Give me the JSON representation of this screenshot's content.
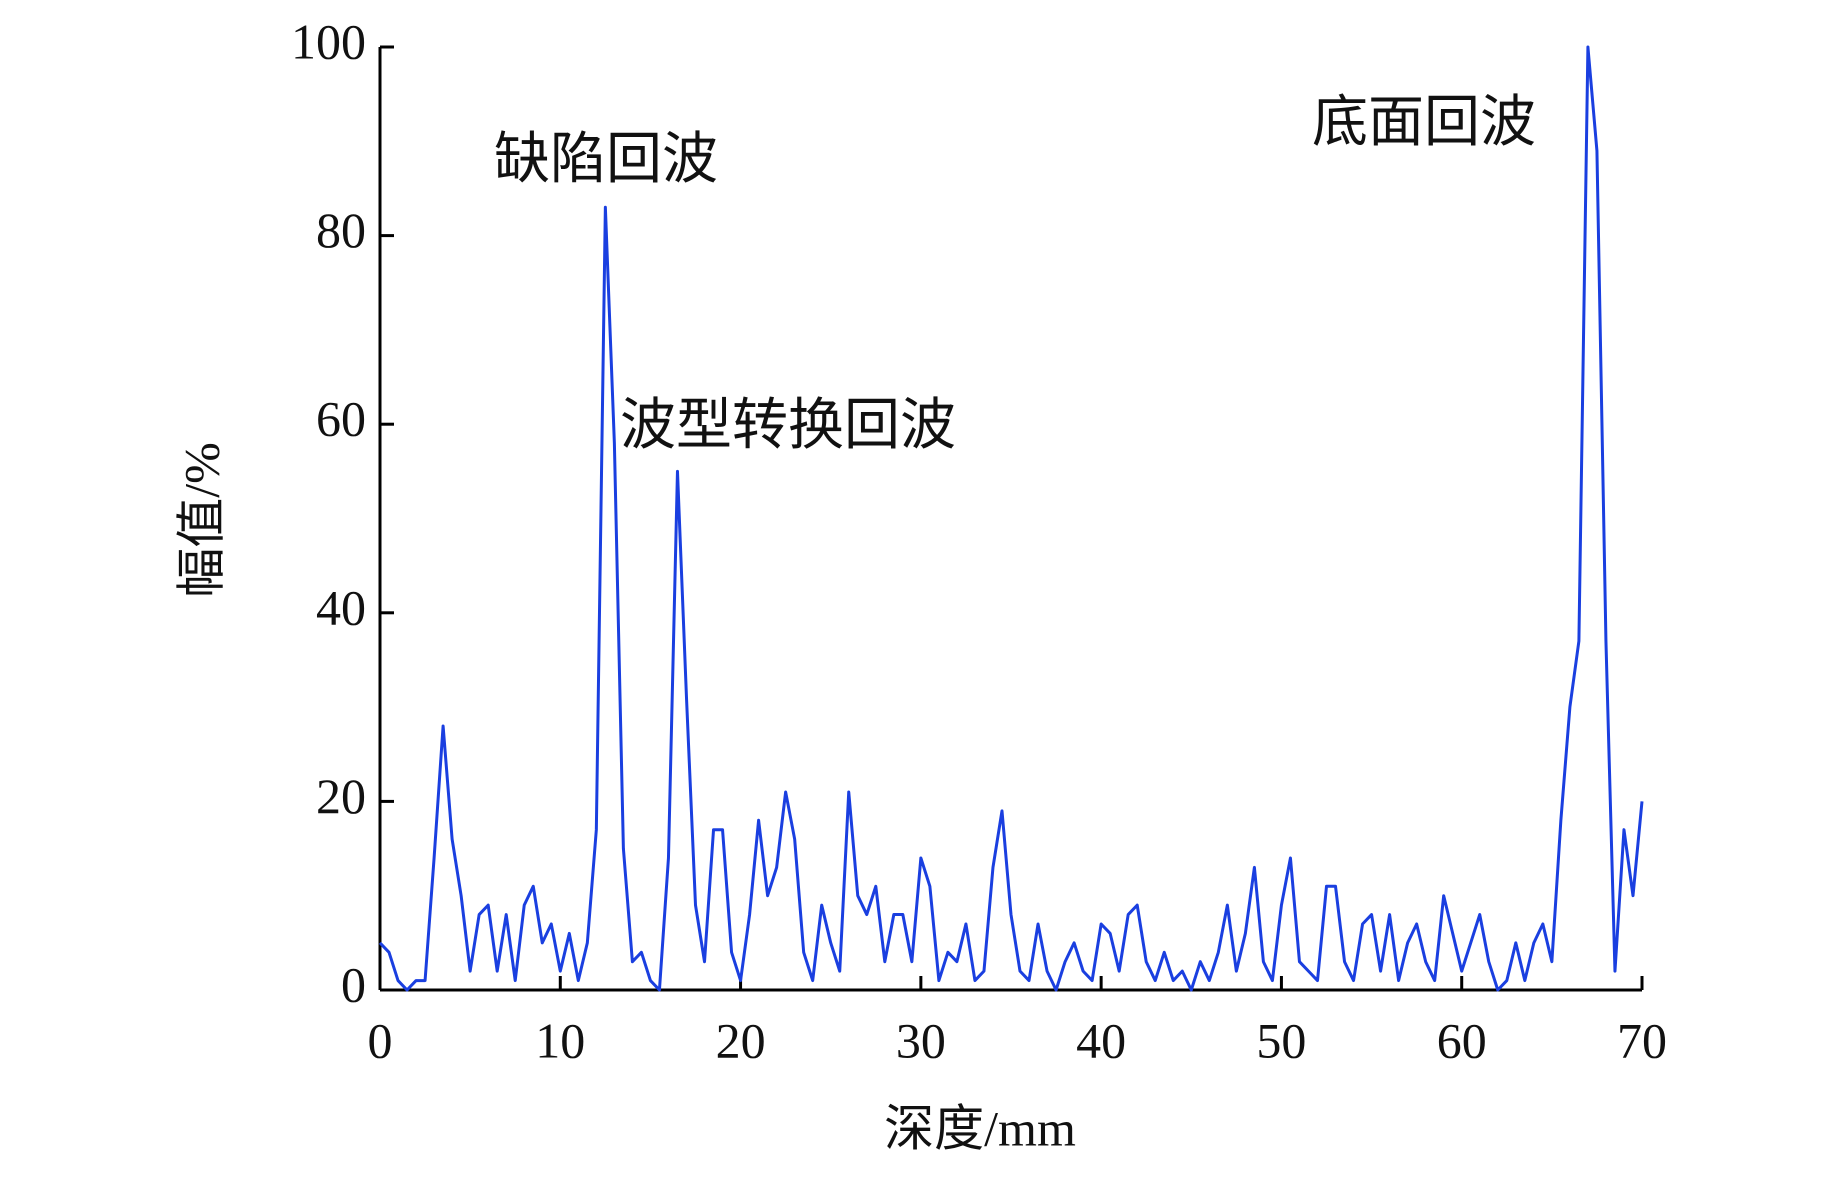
{
  "chart_data": {
    "type": "line",
    "x_label": "深度/mm",
    "y_label": "幅值/%",
    "annotations": [
      "缺陷回波",
      "波型转换回波",
      "底面回波"
    ],
    "x": [
      0,
      0.5,
      1,
      1.5,
      2,
      2.5,
      3,
      3.5,
      4,
      4.5,
      5,
      5.5,
      6,
      6.5,
      7,
      7.5,
      8,
      8.5,
      9,
      9.5,
      10,
      10.5,
      11,
      11.5,
      12,
      12.5,
      13,
      13.5,
      14,
      14.5,
      15,
      15.5,
      16,
      16.5,
      17,
      17.5,
      18,
      18.5,
      19,
      19.5,
      20,
      20.5,
      21,
      21.5,
      22,
      22.5,
      23,
      23.5,
      24,
      24.5,
      25,
      25.5,
      26,
      26.5,
      27,
      27.5,
      28,
      28.5,
      29,
      29.5,
      30,
      30.5,
      31,
      31.5,
      32,
      32.5,
      33,
      33.5,
      34,
      34.5,
      35,
      35.5,
      36,
      36.5,
      37,
      37.5,
      38,
      38.5,
      39,
      39.5,
      40,
      40.5,
      41,
      41.5,
      42,
      42.5,
      43,
      43.5,
      44,
      44.5,
      45,
      45.5,
      46,
      46.5,
      47,
      47.5,
      48,
      48.5,
      49,
      49.5,
      50,
      50.5,
      51,
      51.5,
      52,
      52.5,
      53,
      53.5,
      54,
      54.5,
      55,
      55.5,
      56,
      56.5,
      57,
      57.5,
      58,
      58.5,
      59,
      59.5,
      60,
      60.5,
      61,
      61.5,
      62,
      62.5,
      63,
      63.5,
      64,
      64.5,
      65,
      65.5,
      66,
      66.5,
      67,
      67.5,
      68,
      68.5,
      69,
      69.5,
      70
    ],
    "series": [
      {
        "color": "#1a3fe0",
        "values": [
          5,
          4,
          1,
          0,
          1,
          1,
          14,
          28,
          16,
          10,
          2,
          8,
          9,
          2,
          8,
          1,
          9,
          11,
          5,
          7,
          2,
          6,
          1,
          5,
          17,
          83,
          58,
          15,
          3,
          4,
          1,
          0,
          14,
          55,
          31,
          9,
          3,
          17,
          17,
          4,
          1,
          8,
          18,
          10,
          13,
          21,
          16,
          4,
          1,
          9,
          5,
          2,
          21,
          10,
          8,
          11,
          3,
          8,
          8,
          3,
          14,
          11,
          1,
          4,
          3,
          7,
          1,
          2,
          13,
          19,
          8,
          2,
          1,
          7,
          2,
          0,
          3,
          5,
          2,
          1,
          7,
          6,
          2,
          8,
          9,
          3,
          1,
          4,
          1,
          2,
          0,
          3,
          1,
          4,
          9,
          2,
          6,
          13,
          3,
          1,
          9,
          14,
          3,
          2,
          1,
          11,
          11,
          3,
          1,
          7,
          8,
          2,
          8,
          1,
          5,
          7,
          3,
          1,
          10,
          6,
          2,
          5,
          8,
          3,
          0,
          1,
          5,
          1,
          5,
          7,
          3,
          18,
          30,
          37,
          100,
          89,
          37,
          2,
          17,
          10,
          20
        ]
      }
    ],
    "xlim": [
      0,
      70
    ],
    "xticks": [
      0,
      10,
      20,
      30,
      40,
      50,
      60,
      70
    ],
    "ylim": [
      0,
      100
    ],
    "yticks": [
      0,
      20,
      40,
      60,
      80,
      100
    ],
    "grid": false
  }
}
